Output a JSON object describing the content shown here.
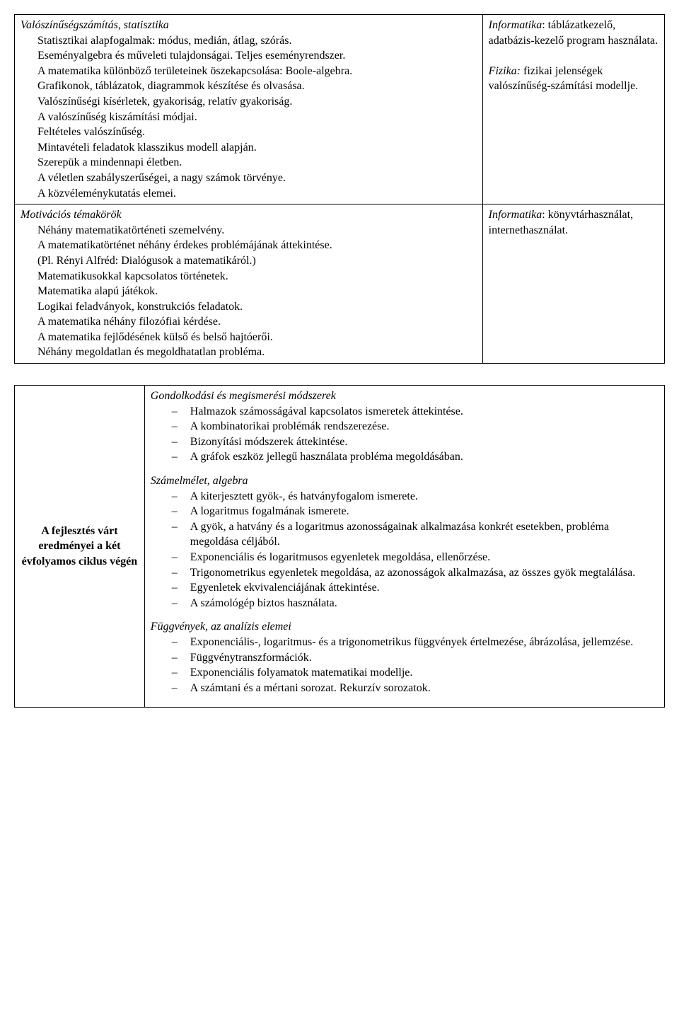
{
  "table1": {
    "row1": {
      "left": {
        "title": "Valószínűségszámítás, statisztika",
        "lines": [
          "Statisztikai alapfogalmak: módus, medián, átlag, szórás.",
          "Eseményalgebra és műveleti tulajdonságai. Teljes eseményrendszer.",
          "A matematika különböző területeinek öszekapcsolása: Boole-algebra.",
          "Grafikonok, táblázatok, diagrammok készítése és olvasása.",
          "Valószínűségi kísérletek, gyakoriság, relatív gyakoriság.",
          "A valószínűség kiszámítási módjai.",
          "Feltételes valószínűség.",
          "Mintavételi feladatok klasszikus modell alapján.",
          "Szerepük a mindennapi életben.",
          "A véletlen szabályszerűségei, a nagy számok törvénye.",
          "A közvéleménykutatás elemei."
        ]
      },
      "right": {
        "p1_label": "Informatika",
        "p1_text": ": táblázatkezelő, adatbázis-kezelő program használata.",
        "p2_label": "Fizika:",
        "p2_text": " fizikai jelenségek valószínűség-számítási modellje."
      }
    },
    "row2": {
      "left": {
        "title": "Motivációs témakörök",
        "lines": [
          "Néhány matematikatörténeti szemelvény.",
          "A matematikatörténet néhány érdekes problémájának áttekintése.",
          "(Pl. Rényi Alfréd: Dialógusok a matematikáról.)",
          "Matematikusokkal kapcsolatos történetek.",
          "Matematika alapú játékok.",
          "Logikai feladványok, konstrukciós feladatok.",
          "A matematika néhány filozófiai kérdése.",
          "A matematika fejlődésének külső és belső hajtóerői.",
          "Néhány megoldatlan és megoldhatatlan probléma."
        ]
      },
      "right": {
        "p1_label": "Informatika",
        "p1_text": ": könyvtárhasználat, internethasználat."
      }
    }
  },
  "table2": {
    "side": "A fejlesztés várt eredményei a két évfolyamos ciklus végén",
    "sections": [
      {
        "title": "Gondolkodási és megismerési módszerek",
        "items": [
          "Halmazok számosságával kapcsolatos ismeretek áttekintése.",
          "A kombinatorikai problémák rendszerezése.",
          "Bizonyítási módszerek áttekintése.",
          "A gráfok eszköz jellegű használata probléma megoldásában."
        ]
      },
      {
        "title": "Számelmélet, algebra",
        "items": [
          "A kiterjesztett gyök-, és hatványfogalom ismerete.",
          "A logaritmus fogalmának ismerete.",
          "A gyök, a hatvány és a logaritmus azonosságainak alkalmazása konkrét esetekben, probléma megoldása céljából.",
          "Exponenciális és logaritmusos egyenletek megoldása, ellenőrzése.",
          "Trigonometrikus egyenletek megoldása, az azonosságok alkalmazása, az összes gyök megtalálása.",
          "Egyenletek ekvivalenciájának áttekintése.",
          "A számológép biztos használata."
        ]
      },
      {
        "title": "Függvények, az analízis elemei",
        "items": [
          "Exponenciális-, logaritmus- és a trigonometrikus függvények értelmezése, ábrázolása, jellemzése.",
          "Függvénytranszformációk.",
          "Exponenciális folyamatok matematikai modellje.",
          "A számtani és a mértani sorozat. Rekurzív sorozatok."
        ]
      }
    ]
  }
}
